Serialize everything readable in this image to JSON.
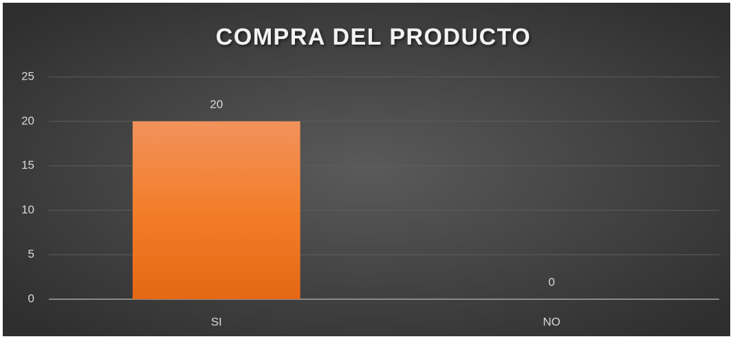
{
  "chart_data": {
    "type": "bar",
    "title": "COMPRA DEL PRODUCTO",
    "categories": [
      "SI",
      "NO"
    ],
    "values": [
      20,
      0
    ],
    "color": "#f07d2e",
    "ylim": [
      0,
      25
    ],
    "yticks": [
      0,
      5,
      10,
      15,
      20,
      25
    ],
    "grid": true
  }
}
